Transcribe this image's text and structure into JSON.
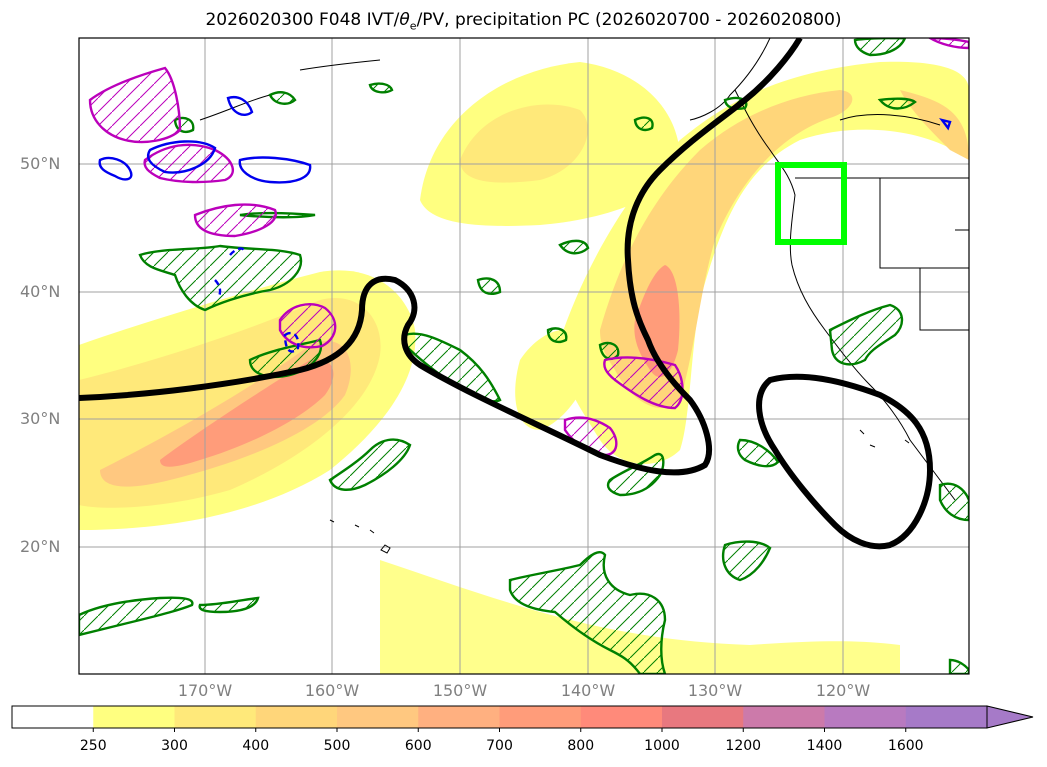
{
  "title": {
    "run": "2026020300 F048 IVT/",
    "theta": "θ",
    "theta_sub": "e",
    "rest": "/PV, precipitation PC (2026020700 - 2026020800)"
  },
  "map": {
    "lat_labels": [
      "50°N",
      "40°N",
      "30°N",
      "20°N"
    ],
    "lon_labels": [
      "170°W",
      "160°W",
      "150°W",
      "140°W",
      "130°W",
      "120°W"
    ],
    "highlight_box_color": "#00ff00",
    "pv_contour_color": "#000000",
    "precip_pc_colors": [
      "#008000",
      "#bb00bb",
      "#0000ee"
    ]
  },
  "colorbar": {
    "ticks": [
      "250",
      "300",
      "400",
      "500",
      "600",
      "700",
      "800",
      "1000",
      "1200",
      "1400",
      "1600"
    ],
    "colors": [
      "#ffffff",
      "#ffff80",
      "#ffe97a",
      "#ffd67a",
      "#ffc880",
      "#ffb080",
      "#ff9c7a",
      "#ff8a7a",
      "#e8787f",
      "#cc7aaa",
      "#b87ac0",
      "#a67ac8"
    ]
  }
}
